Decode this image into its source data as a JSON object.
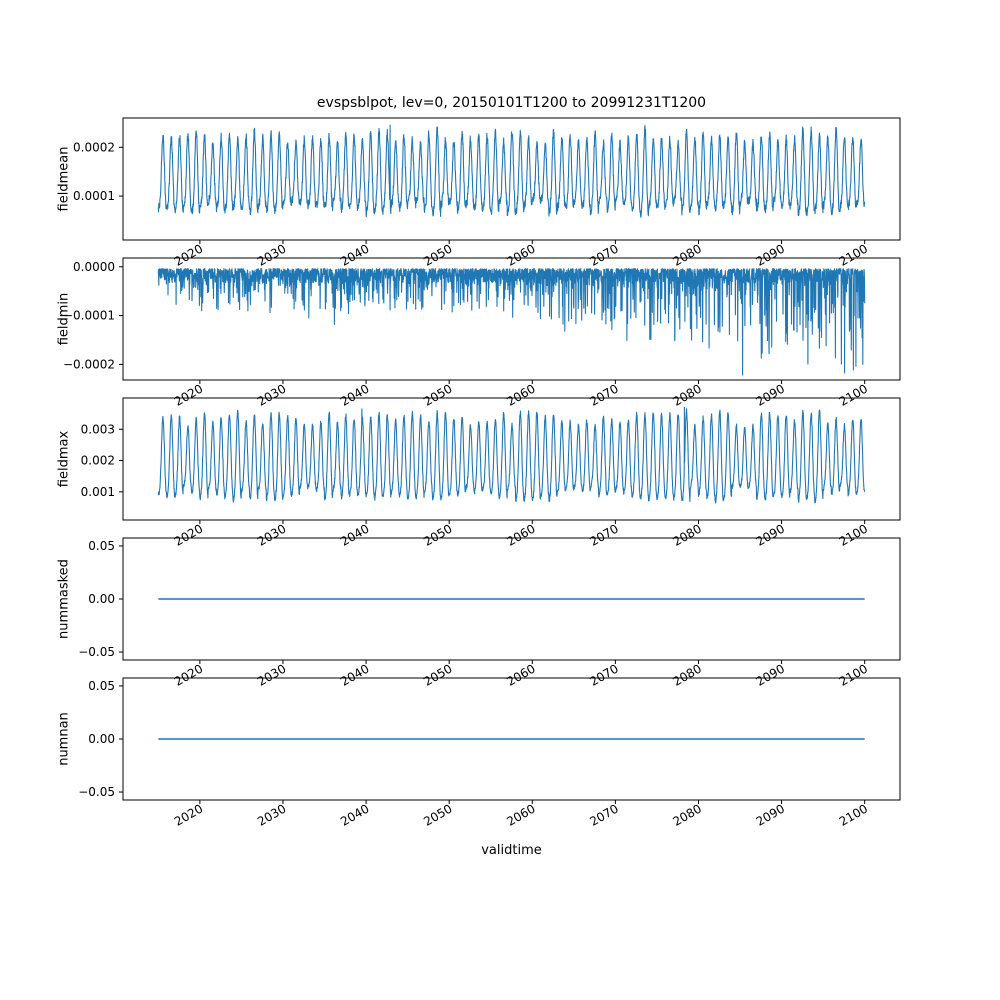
{
  "chart_data": {
    "type": "line",
    "title": "evspsblpot, lev=0, 20150101T1200 to 20991231T1200",
    "line_color": "#1f77b4",
    "background": "#ffffff",
    "samples_per_year": 36,
    "x": {
      "label": "validtime",
      "start": 2015,
      "end": 2100,
      "margin": 0.05,
      "ticks": [
        2020,
        2030,
        2040,
        2050,
        2060,
        2070,
        2080,
        2090,
        2100
      ],
      "tick_rotation": 30
    },
    "subplots": [
      {
        "name": "fieldmean",
        "ylabel": "fieldmean",
        "ylim": [
          1e-05,
          0.00026
        ],
        "yticks": [
          {
            "v": 0.0002,
            "label": "0.0002"
          },
          {
            "v": 0.0001,
            "label": "0.0001"
          }
        ],
        "signal": {
          "kind": "seasonal",
          "seed": 11,
          "base": 0.000135,
          "amp": 7e-05,
          "amp2": 1.5e-05,
          "noise": 9e-06,
          "amp_var": [
            0.8,
            1.25
          ],
          "events": [
            {
              "t": 2042.9,
              "v": 0.000245
            }
          ],
          "approx_range": [
            4e-05,
            0.00024
          ]
        }
      },
      {
        "name": "fieldmin",
        "ylabel": "fieldmin",
        "ylim": [
          -0.000232,
          1.8e-05
        ],
        "yticks": [
          {
            "v": 0.0,
            "label": "0.0000"
          },
          {
            "v": -0.0001,
            "label": "−0.0001"
          },
          {
            "v": -0.0002,
            "label": "−0.0002"
          }
        ],
        "signal": {
          "kind": "negative_spikes",
          "seed": 22,
          "base": -4e-06,
          "band": 2.8e-05,
          "spike": 8e-05,
          "spike_pow": 9,
          "growth_start": 2055,
          "growth_gain": 1.5,
          "events": [
            {
              "t": 2036.2,
              "v": -0.000118
            },
            {
              "t": 2085.3,
              "v": -0.000222
            },
            {
              "t": 2088.8,
              "v": -0.000165
            },
            {
              "t": 2091.5,
              "v": -0.00013
            },
            {
              "t": 2094.8,
              "v": -0.000145
            }
          ],
          "approx_range": [
            -0.000225,
            0.0
          ]
        }
      },
      {
        "name": "fieldmax",
        "ylabel": "fieldmax",
        "ylim": [
          0.0001,
          0.004
        ],
        "yticks": [
          {
            "v": 0.003,
            "label": "0.003"
          },
          {
            "v": 0.002,
            "label": "0.002"
          },
          {
            "v": 0.001,
            "label": "0.001"
          }
        ],
        "signal": {
          "kind": "seasonal",
          "seed": 33,
          "base": 0.00195,
          "amp": 0.00125,
          "amp2": 0.0002,
          "noise": 8e-05,
          "amp_var": [
            0.75,
            1.15
          ],
          "min_clip": 0.0004,
          "events": [
            {
              "t": 2039.5,
              "v": 0.00365
            },
            {
              "t": 2078.3,
              "v": 0.0037
            }
          ],
          "approx_range": [
            0.0005,
            0.0037
          ]
        }
      },
      {
        "name": "nummasked",
        "ylabel": "nummasked",
        "ylim": [
          -0.0575,
          0.0575
        ],
        "yticks": [
          {
            "v": 0.05,
            "label": "0.05"
          },
          {
            "v": 0.0,
            "label": "0.00"
          },
          {
            "v": -0.05,
            "label": "−0.05"
          }
        ],
        "signal": {
          "kind": "constant",
          "value": 0.0
        }
      },
      {
        "name": "numnan",
        "ylabel": "numnan",
        "ylim": [
          -0.0575,
          0.0575
        ],
        "yticks": [
          {
            "v": 0.05,
            "label": "0.05"
          },
          {
            "v": 0.0,
            "label": "0.00"
          },
          {
            "v": -0.05,
            "label": "−0.05"
          }
        ],
        "signal": {
          "kind": "constant",
          "value": 0.0
        }
      }
    ]
  }
}
